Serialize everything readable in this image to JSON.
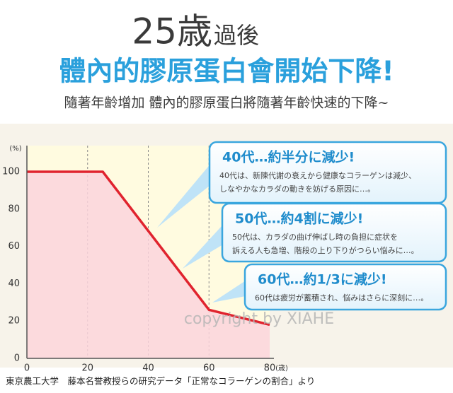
{
  "chart_data": {
    "type": "line",
    "title": "25歳",
    "title_suffix": "過後",
    "subtitle": "體內的膠原蛋白會開始下降!",
    "note": "隨著年齡增加 體內的膠原蛋白將隨著年齡快速的下降~",
    "y_unit": "(%)",
    "x_unit": "(歳)",
    "x": [
      0,
      25,
      60,
      80
    ],
    "values": [
      100,
      100,
      26,
      18
    ],
    "color": "#e0232e",
    "fill": "#fbd3dc",
    "xlim": [
      0,
      80
    ],
    "ylim": [
      0,
      114
    ],
    "xticks": [
      0,
      20,
      40,
      60,
      80
    ],
    "yticks": [
      0,
      20,
      40,
      60,
      80,
      100
    ],
    "grid": true,
    "callouts": [
      {
        "title": "40代…約半分に減少!",
        "lines": [
          "40代は、新陳代謝の衰えから健康なコラーゲンは減少、",
          "しなやかなカラダの動きを妨げる原因に…。"
        ]
      },
      {
        "title": "50代…約4割に減少!",
        "lines": [
          "50代は、カラダの曲げ伸ばし時の負担に症状を",
          "訴える人も急増、階段の上り下りがつらい悩みに…。"
        ]
      },
      {
        "title": "60代…約1/3に減少!",
        "lines": [
          "60代は疲労が蓄積され、悩みはさらに深刻に…。"
        ]
      }
    ],
    "watermark": "copyright by XIAHE",
    "source": "東京農工大学　藤本名誉教授らの研究データ「正常なコラーゲンの割合」より"
  }
}
